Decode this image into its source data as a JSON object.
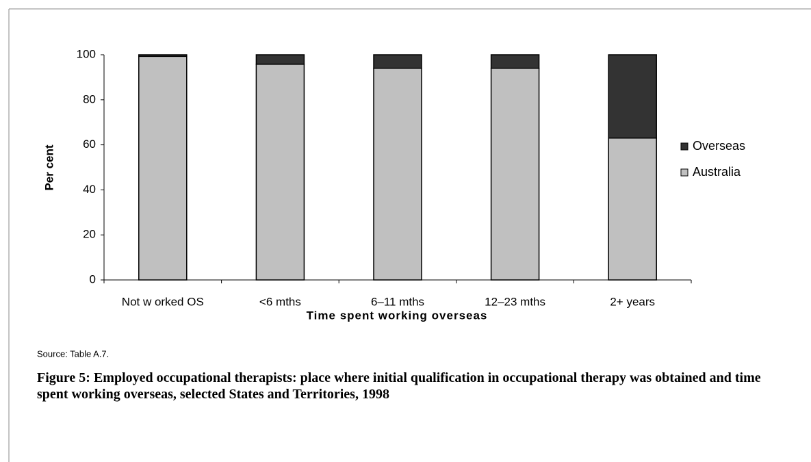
{
  "chart_data": {
    "type": "stacked-bar",
    "y_label": "Per cent",
    "x_label": "Time spent working overseas",
    "source": "Source: Table A.7.",
    "caption": "Figure 5: Employed occupational therapists: place where initial qualification in occupational therapy was obtained and time spent working overseas, selected States and Territories, 1998",
    "categories": [
      "Not w orked OS",
      "<6 mths",
      "6–11 mths",
      "12–23 mths",
      "2+ years"
    ],
    "series": [
      {
        "name": "Australia",
        "color": "#c0c0c0",
        "values": [
          99.3,
          95.8,
          94,
          94,
          63
        ]
      },
      {
        "name": "Overseas",
        "color": "#333333",
        "values": [
          0.7,
          4.2,
          6,
          6,
          37
        ]
      }
    ],
    "ylim": [
      0,
      100
    ],
    "yticks": [
      0,
      20,
      40,
      60,
      80,
      100
    ],
    "legend": "right"
  }
}
